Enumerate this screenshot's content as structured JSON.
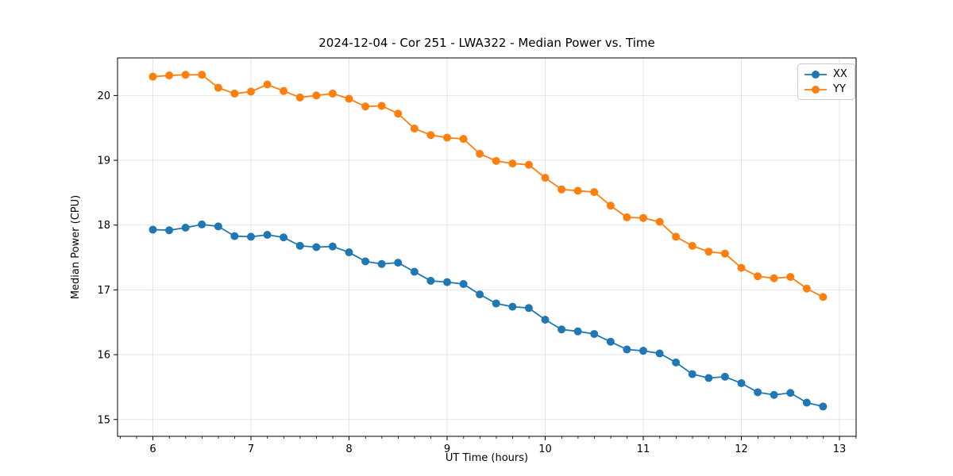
{
  "chart_data": {
    "type": "line",
    "title": "2024-12-04 - Cor 251 - LWA322 - Median Power vs. Time",
    "xlabel": "UT Time (hours)",
    "ylabel": "Median Power (CPU)",
    "x": [
      6.0,
      6.167,
      6.333,
      6.5,
      6.667,
      6.833,
      7.0,
      7.167,
      7.333,
      7.5,
      7.667,
      7.833,
      8.0,
      8.167,
      8.333,
      8.5,
      8.667,
      8.833,
      9.0,
      9.167,
      9.333,
      9.5,
      9.667,
      9.833,
      10.0,
      10.167,
      10.333,
      10.5,
      10.667,
      10.833,
      11.0,
      11.167,
      11.333,
      11.5,
      11.667,
      11.833,
      12.0,
      12.167,
      12.333,
      12.5,
      12.667,
      12.833
    ],
    "series": [
      {
        "name": "XX",
        "color": "#1f77b4",
        "values": [
          17.93,
          17.92,
          17.96,
          18.01,
          17.98,
          17.83,
          17.82,
          17.85,
          17.81,
          17.68,
          17.66,
          17.67,
          17.58,
          17.44,
          17.4,
          17.42,
          17.28,
          17.14,
          17.12,
          17.09,
          16.93,
          16.79,
          16.74,
          16.72,
          16.54,
          16.39,
          16.36,
          16.32,
          16.2,
          16.08,
          16.06,
          16.02,
          15.88,
          15.7,
          15.64,
          15.66,
          15.56,
          15.42,
          15.38,
          15.41,
          15.26,
          15.2
        ]
      },
      {
        "name": "YY",
        "color": "#ff7f0e",
        "values": [
          20.29,
          20.31,
          20.32,
          20.32,
          20.12,
          20.03,
          20.06,
          20.17,
          20.07,
          19.97,
          20.0,
          20.03,
          19.95,
          19.83,
          19.84,
          19.72,
          19.49,
          19.39,
          19.35,
          19.33,
          19.1,
          18.99,
          18.95,
          18.93,
          18.73,
          18.55,
          18.53,
          18.51,
          18.3,
          18.12,
          18.11,
          18.05,
          17.82,
          17.68,
          17.59,
          17.56,
          17.34,
          17.21,
          17.18,
          17.2,
          17.02,
          16.89
        ]
      }
    ],
    "xlim": [
      5.64,
      13.17
    ],
    "ylim": [
      14.74,
      20.58
    ],
    "xticks": [
      6,
      7,
      8,
      9,
      10,
      11,
      12,
      13
    ],
    "yticks": [
      15,
      16,
      17,
      18,
      19,
      20
    ],
    "x_minor_step": 0.1667,
    "grid": true,
    "grid_color": "#e5e5e5",
    "marker": "circle",
    "marker_radius": 5,
    "line_width": 1.8,
    "legend_position": "upper right"
  }
}
